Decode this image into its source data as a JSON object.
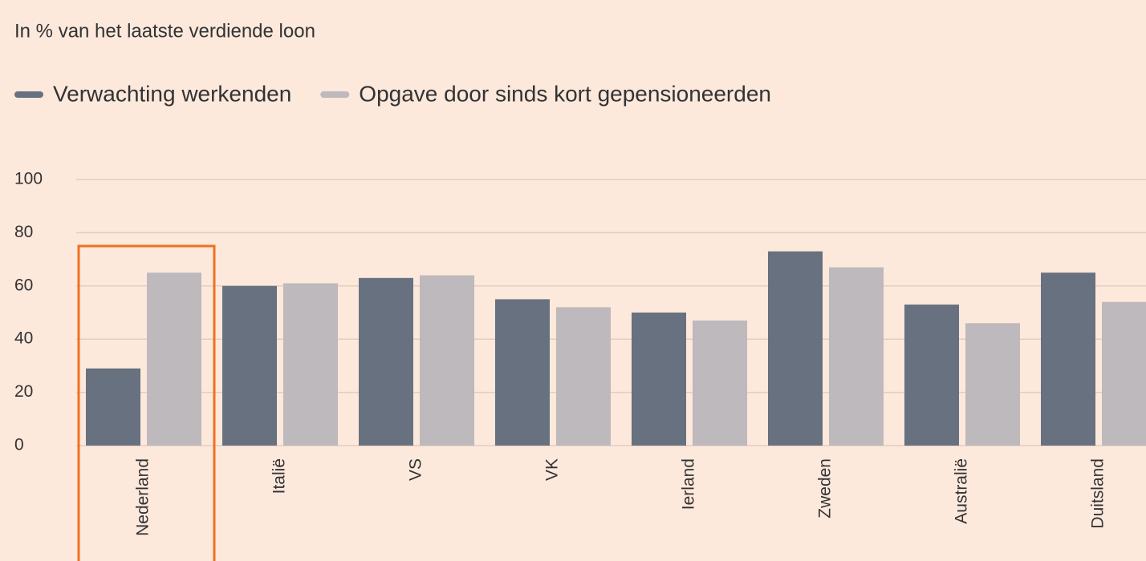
{
  "chart_data": {
    "type": "bar",
    "title": "In % van het laatste verdiende loon",
    "categories": [
      "Nederland",
      "Italië",
      "VS",
      "VK",
      "Ierland",
      "Zweden",
      "Australië",
      "Duitsland"
    ],
    "series": [
      {
        "name": "Verwachting werkenden",
        "color": "#67717f",
        "values": [
          29,
          60,
          63,
          55,
          50,
          73,
          53,
          65
        ]
      },
      {
        "name": "Opgave door sinds kort gepensioneerden",
        "color": "#bdb9bc",
        "values": [
          65,
          61,
          64,
          52,
          47,
          67,
          46,
          54
        ]
      }
    ],
    "ylim": [
      0,
      100
    ],
    "yticks": [
      0,
      20,
      40,
      60,
      80,
      100
    ],
    "grid": true
  }
}
